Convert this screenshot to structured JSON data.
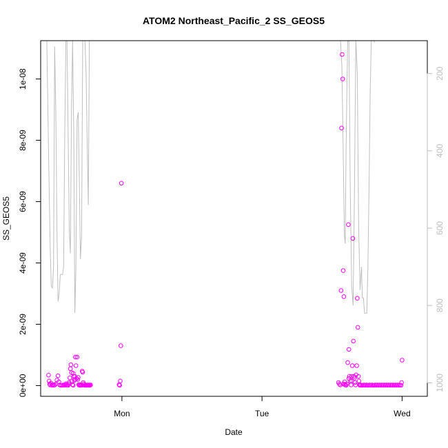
{
  "chart_data": {
    "type": "scatter",
    "title": "ATOM2 Northeast_Pacific_2 SS_GEOS5",
    "xlabel": "Date",
    "ylabel": "SS_GEOS5",
    "x_ticks": [
      "Mon",
      "Tue",
      "Wed"
    ],
    "xlim": [
      -0.29,
      1.09
    ],
    "ylim": [
      -3.5e-10,
      1.125e-08
    ],
    "y_ticks": [
      {
        "value": 0,
        "label": "0e+00"
      },
      {
        "value": 2e-09,
        "label": "2e-09"
      },
      {
        "value": 4e-09,
        "label": "4e-09"
      },
      {
        "value": 6e-09,
        "label": "6e-09"
      },
      {
        "value": 8e-09,
        "label": "8e-09"
      },
      {
        "value": 1e-08,
        "label": "1e-08"
      }
    ],
    "y2_axis": {
      "ylim_reversed": [
        1035,
        115
      ],
      "ticks": [
        {
          "value": 200,
          "label": "200"
        },
        {
          "value": 400,
          "label": "400"
        },
        {
          "value": 600,
          "label": "600"
        },
        {
          "value": 800,
          "label": "800"
        },
        {
          "value": 1000,
          "label": "1000"
        }
      ]
    },
    "colors": {
      "points": "#ff00ff",
      "line": "#bebebe"
    },
    "grid": false,
    "points": [
      [
        -0.262,
        3.4e-10
      ],
      [
        -0.26,
        1.5e-10
      ],
      [
        -0.258,
        5e-11
      ],
      [
        -0.256,
        2e-11
      ],
      [
        -0.253,
        8e-11
      ],
      [
        -0.25,
        1e-11
      ],
      [
        -0.247,
        3e-11
      ],
      [
        -0.243,
        1e-11
      ],
      [
        -0.24,
        2e-11
      ],
      [
        -0.236,
        5e-11
      ],
      [
        -0.232,
        1.8e-10
      ],
      [
        -0.228,
        3.2e-10
      ],
      [
        -0.225,
        1.2e-10
      ],
      [
        -0.222,
        2e-11
      ],
      [
        -0.218,
        1e-11
      ],
      [
        -0.214,
        1e-11
      ],
      [
        -0.21,
        2e-11
      ],
      [
        -0.206,
        1e-11
      ],
      [
        -0.202,
        3e-11
      ],
      [
        -0.198,
        1e-11
      ],
      [
        -0.195,
        2e-11
      ],
      [
        -0.192,
        1e-11
      ],
      [
        -0.189,
        1e-10
      ],
      [
        -0.186,
        2.5e-10
      ],
      [
        -0.184,
        5.5e-10
      ],
      [
        -0.182,
        6.8e-10
      ],
      [
        -0.18,
        4.2e-10
      ],
      [
        -0.178,
        1.5e-10
      ],
      [
        -0.176,
        3e-11
      ],
      [
        -0.174,
        1e-11
      ],
      [
        -0.172,
        3e-10
      ],
      [
        -0.17,
        1.7e-10
      ],
      [
        -0.168,
        2e-10
      ],
      [
        -0.166,
        9.3e-10
      ],
      [
        -0.164,
        6.5e-10
      ],
      [
        -0.162,
        2.3e-10
      ],
      [
        -0.16,
        9.3e-10
      ],
      [
        -0.158,
        2e-10
      ],
      [
        -0.156,
        2.7e-10
      ],
      [
        -0.154,
        3e-11
      ],
      [
        -0.152,
        1e-11
      ],
      [
        -0.15,
        3e-11
      ],
      [
        -0.148,
        1e-11
      ],
      [
        -0.146,
        2e-11
      ],
      [
        -0.144,
        1e-11
      ],
      [
        -0.142,
        4.7e-10
      ],
      [
        -0.14,
        4.4e-10
      ],
      [
        -0.138,
        1e-10
      ],
      [
        -0.136,
        5e-11
      ],
      [
        -0.134,
        1e-11
      ],
      [
        -0.132,
        2e-11
      ],
      [
        -0.13,
        1e-11
      ],
      [
        -0.128,
        2e-11
      ],
      [
        -0.126,
        1e-11
      ],
      [
        -0.124,
        1e-11
      ],
      [
        -0.122,
        2e-11
      ],
      [
        -0.12,
        2e-11
      ],
      [
        -0.118,
        1e-11
      ],
      [
        -0.116,
        2e-11
      ],
      [
        -0.114,
        1e-11
      ],
      [
        -0.112,
        2e-11
      ],
      [
        -0.01,
        3e-11
      ],
      [
        -0.008,
        1e-11
      ],
      [
        -0.006,
        1.5e-10
      ],
      [
        -0.004,
        1.3e-09
      ],
      [
        -0.002,
        6.6e-09
      ],
      [
        -0.168,
        3e-10
      ],
      [
        -0.174,
        4e-10
      ],
      [
        -0.19,
        5e-11
      ],
      [
        -0.2,
        6e-11
      ],
      [
        0.773,
        1e-10
      ],
      [
        0.776,
        5e-11
      ],
      [
        0.779,
        2e-11
      ],
      [
        0.782,
        3.1e-09
      ],
      [
        0.784,
        8.4e-09
      ],
      [
        0.786,
        1.08e-08
      ],
      [
        0.788,
        1e-08
      ],
      [
        0.79,
        3.75e-09
      ],
      [
        0.792,
        2.9e-09
      ],
      [
        0.794,
        5e-11
      ],
      [
        0.797,
        2e-11
      ],
      [
        0.8,
        1e-11
      ],
      [
        0.803,
        5e-11
      ],
      [
        0.806,
        7.5e-10
      ],
      [
        0.808,
        5.25e-09
      ],
      [
        0.81,
        1.18e-09
      ],
      [
        0.812,
        3e-10
      ],
      [
        0.815,
        1.5e-10
      ],
      [
        0.818,
        2e-11
      ],
      [
        0.82,
        3e-10
      ],
      [
        0.822,
        6.5e-10
      ],
      [
        0.824,
        4.8e-09
      ],
      [
        0.826,
        1.45e-09
      ],
      [
        0.828,
        3e-10
      ],
      [
        0.83,
        2.5e-10
      ],
      [
        0.832,
        1e-10
      ],
      [
        0.834,
        2e-11
      ],
      [
        0.836,
        3.5e-10
      ],
      [
        0.838,
        6.5e-10
      ],
      [
        0.84,
        2.85e-09
      ],
      [
        0.842,
        1.9e-09
      ],
      [
        0.844,
        3e-10
      ],
      [
        0.846,
        1.5e-10
      ],
      [
        0.848,
        3e-11
      ],
      [
        0.85,
        1e-11
      ],
      [
        0.852,
        2e-11
      ],
      [
        0.856,
        1e-11
      ],
      [
        0.86,
        1e-11
      ],
      [
        0.864,
        2e-11
      ],
      [
        0.868,
        1e-11
      ],
      [
        0.872,
        2e-11
      ],
      [
        0.876,
        1e-11
      ],
      [
        0.88,
        1e-11
      ],
      [
        0.884,
        2e-11
      ],
      [
        0.888,
        1e-11
      ],
      [
        0.892,
        2e-11
      ],
      [
        0.896,
        1e-11
      ],
      [
        0.9,
        1e-11
      ],
      [
        0.904,
        2e-11
      ],
      [
        0.908,
        1e-11
      ],
      [
        0.912,
        2e-11
      ],
      [
        0.916,
        1e-11
      ],
      [
        0.92,
        2e-11
      ],
      [
        0.924,
        1e-11
      ],
      [
        0.928,
        2e-11
      ],
      [
        0.932,
        1e-11
      ],
      [
        0.936,
        2e-11
      ],
      [
        0.94,
        1e-11
      ],
      [
        0.944,
        2e-11
      ],
      [
        0.948,
        1e-11
      ],
      [
        0.952,
        2e-11
      ],
      [
        0.956,
        1e-11
      ],
      [
        0.96,
        2e-11
      ],
      [
        0.964,
        1e-11
      ],
      [
        0.968,
        2e-11
      ],
      [
        0.972,
        1e-11
      ],
      [
        0.976,
        2e-11
      ],
      [
        0.98,
        1e-11
      ],
      [
        0.984,
        2e-11
      ],
      [
        0.988,
        1e-11
      ],
      [
        0.992,
        2e-11
      ],
      [
        0.996,
        1e-11
      ],
      [
        0.998,
        1e-10
      ],
      [
        1.0,
        8.3e-10
      ],
      [
        0.79,
        5e-11
      ],
      [
        0.795,
        1.2e-10
      ],
      [
        0.81,
        2.3e-10
      ],
      [
        0.82,
        1.5e-10
      ]
    ],
    "pressure_line": [
      [
        -0.268,
        114
      ],
      [
        -0.262,
        400
      ],
      [
        -0.256,
        650
      ],
      [
        -0.252,
        750
      ],
      [
        -0.248,
        755
      ],
      [
        -0.244,
        700
      ],
      [
        -0.24,
        130
      ],
      [
        -0.236,
        300
      ],
      [
        -0.232,
        600
      ],
      [
        -0.228,
        790
      ],
      [
        -0.224,
        770
      ],
      [
        -0.22,
        720
      ],
      [
        -0.216,
        720
      ],
      [
        -0.212,
        720
      ],
      [
        -0.208,
        700
      ],
      [
        -0.204,
        350
      ],
      [
        -0.2,
        114
      ],
      [
        -0.196,
        114
      ],
      [
        -0.192,
        350
      ],
      [
        -0.188,
        600
      ],
      [
        -0.184,
        665
      ],
      [
        -0.18,
        300
      ],
      [
        -0.176,
        114
      ],
      [
        -0.172,
        350
      ],
      [
        -0.168,
        820
      ],
      [
        -0.164,
        700
      ],
      [
        -0.16,
        320
      ],
      [
        -0.156,
        300
      ],
      [
        -0.152,
        480
      ],
      [
        -0.148,
        680
      ],
      [
        -0.144,
        620
      ],
      [
        -0.14,
        114
      ],
      [
        -0.136,
        114
      ],
      [
        -0.132,
        114
      ],
      [
        -0.128,
        200
      ],
      [
        -0.124,
        380
      ],
      [
        -0.12,
        540
      ],
      [
        -0.116,
        114
      ],
      [
        -0.112,
        114
      ],
      [
        0.7,
        114
      ],
      [
        0.76,
        114
      ],
      [
        0.77,
        114
      ],
      [
        0.775,
        114
      ],
      [
        0.78,
        114
      ],
      [
        0.785,
        180
      ],
      [
        0.79,
        410
      ],
      [
        0.794,
        620
      ],
      [
        0.797,
        640
      ],
      [
        0.8,
        400
      ],
      [
        0.803,
        250
      ],
      [
        0.806,
        114
      ],
      [
        0.81,
        114
      ],
      [
        0.815,
        500
      ],
      [
        0.82,
        750
      ],
      [
        0.825,
        800
      ],
      [
        0.83,
        500
      ],
      [
        0.835,
        114
      ],
      [
        0.84,
        200
      ],
      [
        0.845,
        600
      ],
      [
        0.85,
        760
      ],
      [
        0.855,
        700
      ],
      [
        0.858,
        780
      ],
      [
        0.862,
        780
      ],
      [
        0.866,
        820
      ],
      [
        0.87,
        820
      ],
      [
        0.874,
        820
      ],
      [
        0.878,
        700
      ],
      [
        0.882,
        500
      ],
      [
        0.886,
        250
      ],
      [
        0.89,
        114
      ],
      [
        0.894,
        114
      ],
      [
        0.898,
        114
      ],
      [
        0.902,
        120
      ]
    ]
  }
}
